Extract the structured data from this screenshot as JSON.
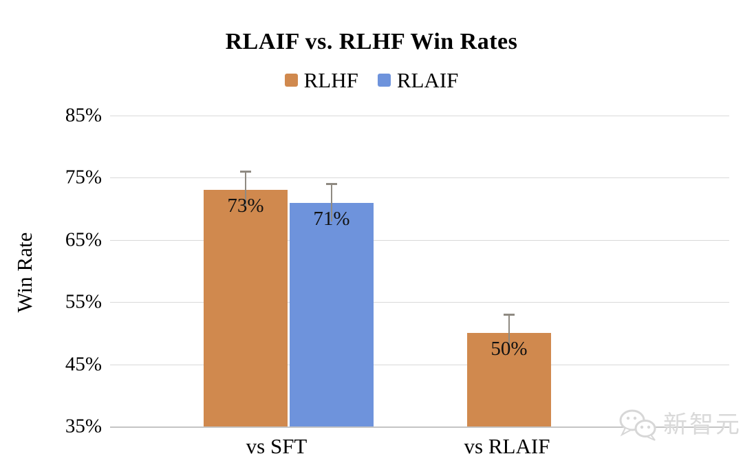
{
  "title": "RLAIF vs. RLHF Win Rates",
  "watermark": {
    "text": "新智元",
    "icon": "wechat-icon"
  },
  "chart_data": {
    "type": "bar",
    "title": "RLAIF vs. RLHF Win Rates",
    "categories": [
      "vs SFT",
      "vs RLAIF"
    ],
    "series": [
      {
        "name": "RLHF",
        "color": "#D0894E",
        "values": [
          73,
          50
        ],
        "data_labels": [
          "73%",
          "50%"
        ],
        "error_bars": [
          3,
          3
        ]
      },
      {
        "name": "RLAIF",
        "color": "#6E93DC",
        "values": [
          71,
          null
        ],
        "data_labels": [
          "71%",
          null
        ],
        "error_bars": [
          3,
          null
        ]
      }
    ],
    "xlabel": "",
    "ylabel": "Win Rate",
    "ylim": [
      35,
      85
    ],
    "yticks": [
      "85%",
      "75%",
      "65%",
      "55%",
      "45%",
      "35%"
    ],
    "ytick_step": 10,
    "value_suffix": "%",
    "grid": true,
    "legend_position": "top",
    "colors": {
      "gridline": "#d9d9d9",
      "axis": "#c4c4c4",
      "error_bar": "#8f8a82"
    }
  }
}
